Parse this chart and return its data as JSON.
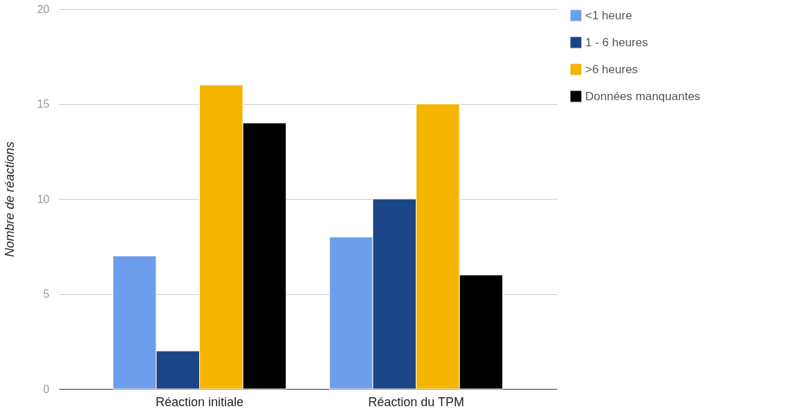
{
  "chart_data": {
    "type": "bar",
    "ylabel": "Nombre de réactions",
    "categories": [
      "Réaction initiale",
      "Réaction du TPM"
    ],
    "series": [
      {
        "name": "<1 heure",
        "color": "#6d9eeb",
        "values": [
          7,
          8
        ]
      },
      {
        "name": "1 - 6 heures",
        "color": "#1c4587",
        "values": [
          2,
          10
        ]
      },
      {
        "name": ">6 heures",
        "color": "#f4b400",
        "values": [
          16,
          15
        ]
      },
      {
        "name": "Données manquantes",
        "color": "#000000",
        "values": [
          14,
          6
        ]
      }
    ],
    "ylim": [
      0,
      20
    ],
    "yticks": [
      0,
      5,
      10,
      15,
      20
    ],
    "grid": "y",
    "legend": "top right"
  }
}
